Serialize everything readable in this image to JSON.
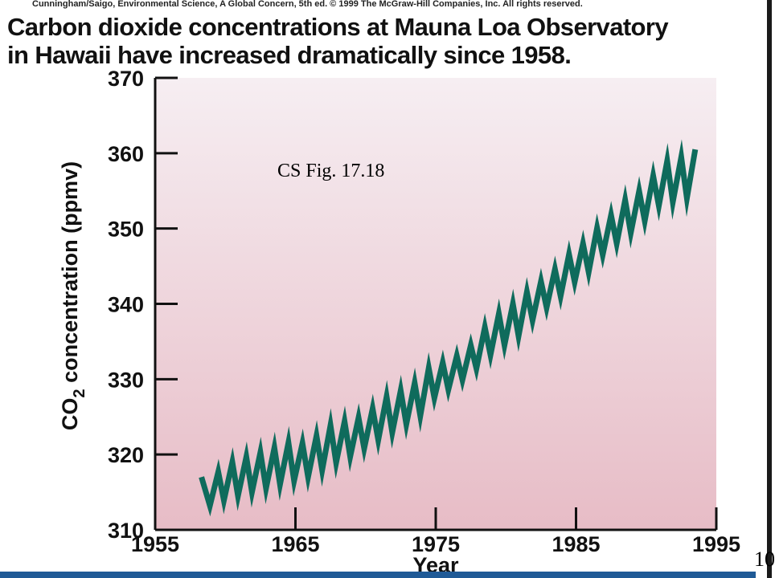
{
  "header": {
    "credit": "Cunningham/Saigo, Environmental Science, A Global Concern, 5th ed. © 1999 The McGraw-Hill Companies, Inc. All rights reserved.",
    "title_line1": "Carbon dioxide concentrations at Mauna Loa Observatory",
    "title_line2": "in Hawaii have increased dramatically since 1958."
  },
  "annotation": "CS Fig. 17.18",
  "page_number": "10",
  "colors": {
    "line": "#0f6b5c",
    "plot_top": "#f6eef2",
    "plot_bottom": "#e7bcc6",
    "bottom_bar": "#1f5a96"
  },
  "chart_data": {
    "type": "line",
    "title": "",
    "xlabel": "Year",
    "ylabel_prefix": "CO",
    "ylabel_subscript": "2",
    "ylabel_suffix": " concentration (ppmv)",
    "xlim": [
      1955,
      1995
    ],
    "ylim": [
      310,
      370
    ],
    "x_ticks": [
      "1955",
      "1965",
      "1975",
      "1985",
      "1995"
    ],
    "y_ticks": [
      "310",
      "320",
      "330",
      "340",
      "350",
      "360",
      "370"
    ],
    "grid": false,
    "series": [
      {
        "x": [
          1958.3,
          1958.9,
          1959.5,
          1959.9,
          1960.5,
          1960.9,
          1961.5,
          1961.9,
          1962.5,
          1962.9,
          1963.5,
          1963.9,
          1964.5,
          1964.9,
          1965.5,
          1965.9,
          1966.5,
          1966.9,
          1967.5,
          1967.9,
          1968.5,
          1968.9,
          1969.5,
          1969.9,
          1970.5,
          1970.9,
          1971.5,
          1971.9,
          1972.5,
          1972.9,
          1973.5,
          1973.9,
          1974.5,
          1974.9,
          1975.5,
          1975.9,
          1976.5,
          1976.9,
          1977.5,
          1977.9,
          1978.5,
          1978.9,
          1979.5,
          1979.9,
          1980.5,
          1980.9,
          1981.5,
          1981.9,
          1982.5,
          1982.9,
          1983.5,
          1983.9,
          1984.5,
          1984.9,
          1985.5,
          1985.9,
          1986.5,
          1986.9,
          1987.5,
          1987.9,
          1988.5,
          1988.9,
          1989.5,
          1989.9,
          1990.5,
          1990.9,
          1991.5,
          1991.9,
          1992.5,
          1992.9,
          1993.5
        ],
        "values": [
          317.0,
          313.2,
          317.7,
          313.9,
          319.0,
          314.5,
          319.7,
          315.0,
          320.3,
          315.5,
          320.9,
          316.0,
          321.6,
          316.5,
          321.5,
          317.0,
          322.5,
          317.9,
          323.9,
          318.9,
          324.4,
          319.7,
          324.9,
          320.8,
          326.1,
          321.9,
          327.7,
          322.9,
          328.5,
          324.0,
          329.5,
          325.1,
          331.5,
          327.5,
          332.2,
          328.6,
          333.1,
          329.9,
          334.5,
          331.4,
          336.9,
          333.2,
          338.7,
          334.5,
          340.0,
          335.7,
          341.6,
          337.8,
          343.0,
          339.5,
          344.6,
          341.0,
          346.6,
          342.9,
          348.0,
          344.2,
          350.1,
          346.5,
          351.8,
          348.0,
          353.8,
          349.4,
          355.0,
          351.0,
          357.0,
          353.0,
          359.0,
          353.5,
          359.5,
          354.0,
          360.5
        ]
      }
    ]
  }
}
